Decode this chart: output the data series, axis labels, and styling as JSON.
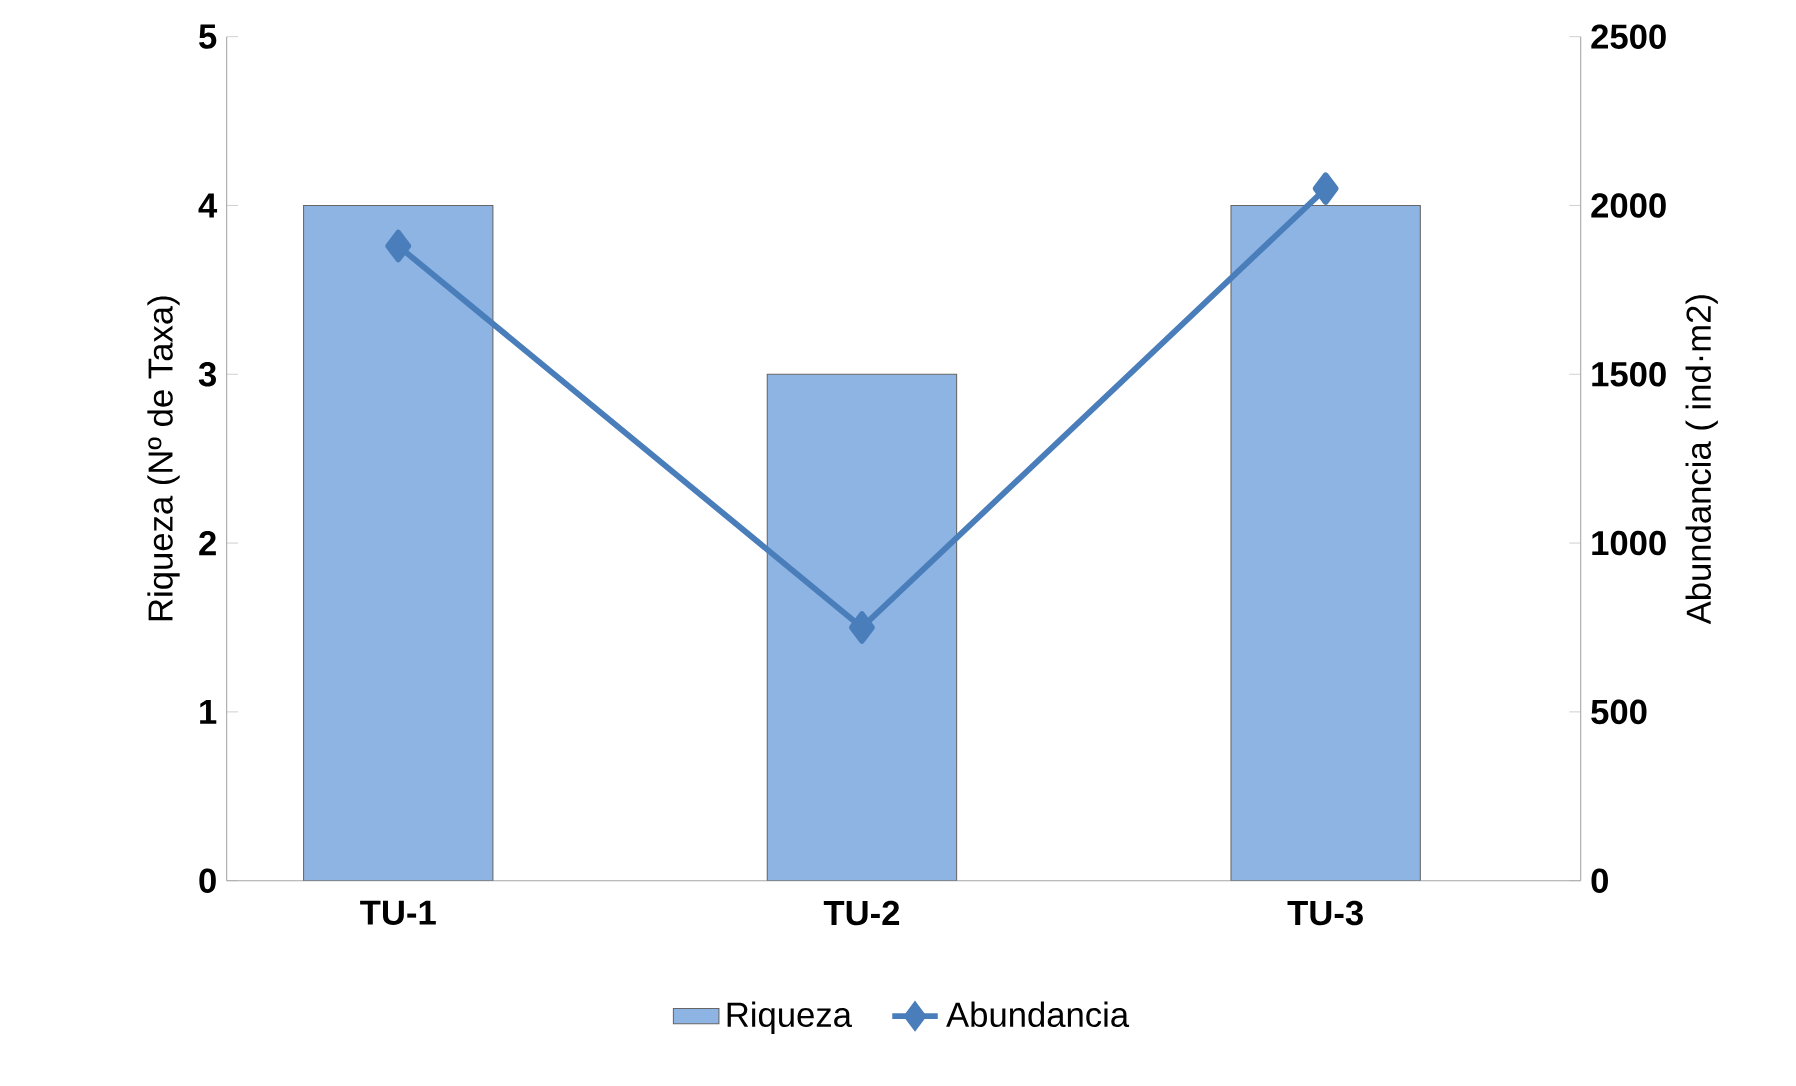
{
  "chart_data": {
    "type": "bar",
    "categories": [
      "TU-1",
      "TU-2",
      "TU-3"
    ],
    "ylabel": "Riqueza (Nº de Taxa)",
    "y2label": "Abundancia ( ind·m2)",
    "ylim": [
      0,
      5
    ],
    "yticks": [
      0,
      1,
      2,
      3,
      4,
      5
    ],
    "y2lim": [
      0,
      2500
    ],
    "y2ticks": [
      0,
      500,
      1000,
      1500,
      2000,
      2500
    ],
    "legend": "bottom",
    "series": [
      {
        "name": "Riqueza",
        "color": "#8eb4e3",
        "values": [
          4,
          3,
          4
        ]
      },
      {
        "name": "Abundancia",
        "type": "line",
        "axis": "y2",
        "marker": "diamond",
        "color": "#4a7ebb",
        "values": [
          1880,
          750,
          2050
        ]
      }
    ]
  }
}
